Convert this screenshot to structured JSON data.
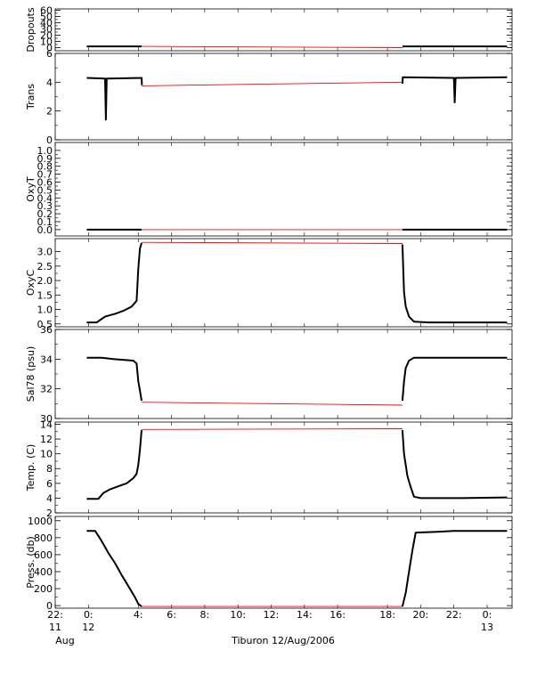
{
  "chart_data": {
    "type": "line",
    "caption": "Tiburon 12/Aug/2006",
    "x_axis": {
      "range_hours": [
        -2,
        25.5
      ],
      "ticks": [
        {
          "t": -2,
          "label": "22:",
          "sub": "11"
        },
        {
          "t": 0,
          "label": "0:",
          "sub": "12"
        },
        {
          "t": 3,
          "label": "4:",
          "sub": ""
        },
        {
          "t": 5,
          "label": "6:",
          "sub": ""
        },
        {
          "t": 7,
          "label": "8:",
          "sub": ""
        },
        {
          "t": 9,
          "label": "10:",
          "sub": ""
        },
        {
          "t": 11,
          "label": "12:",
          "sub": ""
        },
        {
          "t": 13,
          "label": "14:",
          "sub": ""
        },
        {
          "t": 15,
          "label": "16:",
          "sub": ""
        },
        {
          "t": 18,
          "label": "18:",
          "sub": ""
        },
        {
          "t": 20,
          "label": "20:",
          "sub": ""
        },
        {
          "t": 22,
          "label": "22:",
          "sub": ""
        },
        {
          "t": 24,
          "label": "0:",
          "sub": "13"
        }
      ],
      "month_label": "Aug"
    },
    "gap": {
      "start": 3.2,
      "end": 18.9
    },
    "panels": [
      {
        "name": "Dropouts",
        "ylabel": "Dropouts",
        "ylim": [
          -5,
          62
        ],
        "ticks": [
          0,
          10,
          20,
          30,
          40,
          50,
          60
        ],
        "tick_labels": [
          "0",
          "10",
          "20",
          "30",
          "40",
          "50",
          "60"
        ],
        "black": [
          [
            [
              -0.1,
              2
            ],
            [
              3.2,
              2
            ]
          ],
          [
            [
              18.9,
              2
            ],
            [
              25.2,
              2
            ]
          ]
        ],
        "red": [
          [
            3.2,
            2
          ],
          [
            18.9,
            0
          ]
        ]
      },
      {
        "name": "Trans",
        "ylabel": "Trans",
        "ylim": [
          0,
          6
        ],
        "ticks": [
          0,
          2,
          4,
          6
        ],
        "tick_labels": [
          "0",
          "2",
          "4",
          "6"
        ],
        "black": [
          [
            [
              -0.1,
              4.3
            ],
            [
              1.0,
              4.25
            ],
            [
              1.05,
              1.4
            ],
            [
              1.1,
              4.25
            ],
            [
              3.2,
              4.3
            ],
            [
              3.22,
              3.8
            ]
          ],
          [
            [
              18.9,
              3.9
            ],
            [
              18.92,
              4.35
            ],
            [
              22.0,
              4.3
            ],
            [
              22.05,
              2.6
            ],
            [
              22.1,
              4.3
            ],
            [
              25.2,
              4.35
            ]
          ]
        ],
        "red": [
          [
            3.2,
            3.75
          ],
          [
            18.9,
            4.0
          ]
        ]
      },
      {
        "name": "OxyT",
        "ylabel": "OxyT",
        "ylim": [
          -0.08,
          1.1
        ],
        "ticks": [
          0.0,
          0.1,
          0.2,
          0.3,
          0.4,
          0.5,
          0.6,
          0.7,
          0.8,
          0.9,
          1.0
        ],
        "tick_labels": [
          "0.0",
          "0.1",
          "0.2",
          "0.3",
          "0.4",
          "0.5",
          "0.6",
          "0.7",
          "0.8",
          "0.9",
          "1.0"
        ],
        "black": [
          [
            [
              -0.1,
              0.0
            ],
            [
              3.2,
              0.0
            ]
          ],
          [
            [
              18.9,
              0.0
            ],
            [
              25.2,
              0.0
            ]
          ]
        ],
        "red": [
          [
            3.2,
            0.0
          ],
          [
            18.9,
            0.0
          ]
        ]
      },
      {
        "name": "OxyC",
        "ylabel": "OxyC",
        "ylim": [
          0.4,
          3.45
        ],
        "ticks": [
          0.5,
          1.0,
          1.5,
          2.0,
          2.5,
          3.0
        ],
        "tick_labels": [
          "0.5",
          "1.0",
          "1.5",
          "2.0",
          "2.5",
          "3.0"
        ],
        "black": [
          [
            [
              -0.1,
              0.55
            ],
            [
              0.5,
              0.55
            ],
            [
              1.0,
              0.75
            ],
            [
              1.6,
              0.85
            ],
            [
              2.1,
              0.95
            ],
            [
              2.6,
              1.1
            ],
            [
              2.9,
              1.3
            ],
            [
              3.0,
              2.4
            ],
            [
              3.1,
              3.1
            ],
            [
              3.2,
              3.3
            ]
          ],
          [
            [
              18.9,
              3.25
            ],
            [
              19.0,
              1.6
            ],
            [
              19.1,
              1.1
            ],
            [
              19.3,
              0.75
            ],
            [
              19.6,
              0.58
            ],
            [
              20.5,
              0.55
            ],
            [
              25.2,
              0.55
            ]
          ]
        ],
        "red": [
          [
            3.2,
            3.32
          ],
          [
            18.9,
            3.28
          ]
        ]
      },
      {
        "name": "Sal78",
        "ylabel": "Sal78 (psu)",
        "ylim": [
          30,
          36
        ],
        "ticks": [
          30,
          32,
          34,
          36
        ],
        "tick_labels": [
          "30",
          "32",
          "34",
          "36"
        ],
        "black": [
          [
            [
              -0.1,
              34.1
            ],
            [
              0.8,
              34.1
            ],
            [
              1.5,
              34.0
            ],
            [
              2.7,
              33.9
            ],
            [
              2.9,
              33.7
            ],
            [
              3.0,
              32.5
            ],
            [
              3.1,
              31.9
            ],
            [
              3.2,
              31.2
            ]
          ],
          [
            [
              18.9,
              31.2
            ],
            [
              19.0,
              32.5
            ],
            [
              19.1,
              33.4
            ],
            [
              19.3,
              33.9
            ],
            [
              19.6,
              34.1
            ],
            [
              25.2,
              34.1
            ]
          ]
        ],
        "red": [
          [
            3.2,
            31.1
          ],
          [
            18.9,
            30.9
          ]
        ]
      },
      {
        "name": "Temp",
        "ylabel": "Temp. (C)",
        "ylim": [
          2,
          14.3
        ],
        "ticks": [
          2,
          4,
          6,
          8,
          10,
          12,
          14
        ],
        "tick_labels": [
          "2",
          "4",
          "6",
          "8",
          "10",
          "12",
          "14"
        ],
        "black": [
          [
            [
              -0.1,
              3.9
            ],
            [
              0.6,
              3.9
            ],
            [
              0.9,
              4.7
            ],
            [
              1.3,
              5.2
            ],
            [
              1.8,
              5.6
            ],
            [
              2.3,
              6.0
            ],
            [
              2.7,
              6.7
            ],
            [
              2.9,
              7.3
            ],
            [
              3.0,
              8.5
            ],
            [
              3.1,
              10.5
            ],
            [
              3.2,
              13.2
            ]
          ],
          [
            [
              18.9,
              13.2
            ],
            [
              19.0,
              10.0
            ],
            [
              19.2,
              7.0
            ],
            [
              19.4,
              5.5
            ],
            [
              19.6,
              4.2
            ],
            [
              20.0,
              4.0
            ],
            [
              22.5,
              4.0
            ],
            [
              25.2,
              4.1
            ]
          ]
        ],
        "red": [
          [
            3.2,
            13.3
          ],
          [
            18.9,
            13.4
          ]
        ]
      },
      {
        "name": "Press",
        "ylabel": "Press. (db)",
        "ylim": [
          -30,
          1050
        ],
        "ticks": [
          0,
          200,
          400,
          600,
          800,
          1000
        ],
        "tick_labels": [
          "0",
          "200",
          "400",
          "600",
          "800",
          "1000"
        ],
        "black": [
          [
            [
              -0.1,
              880
            ],
            [
              0.4,
              880
            ],
            [
              0.8,
              760
            ],
            [
              1.2,
              620
            ],
            [
              1.6,
              500
            ],
            [
              2.0,
              360
            ],
            [
              2.4,
              230
            ],
            [
              2.8,
              100
            ],
            [
              3.0,
              20
            ],
            [
              3.2,
              -10
            ]
          ],
          [
            [
              18.9,
              -10
            ],
            [
              19.1,
              150
            ],
            [
              19.3,
              400
            ],
            [
              19.5,
              650
            ],
            [
              19.7,
              860
            ],
            [
              21.0,
              870
            ],
            [
              22.0,
              880
            ],
            [
              25.2,
              880
            ]
          ]
        ],
        "red": [
          [
            3.2,
            -10
          ],
          [
            18.9,
            -10
          ]
        ]
      }
    ]
  }
}
